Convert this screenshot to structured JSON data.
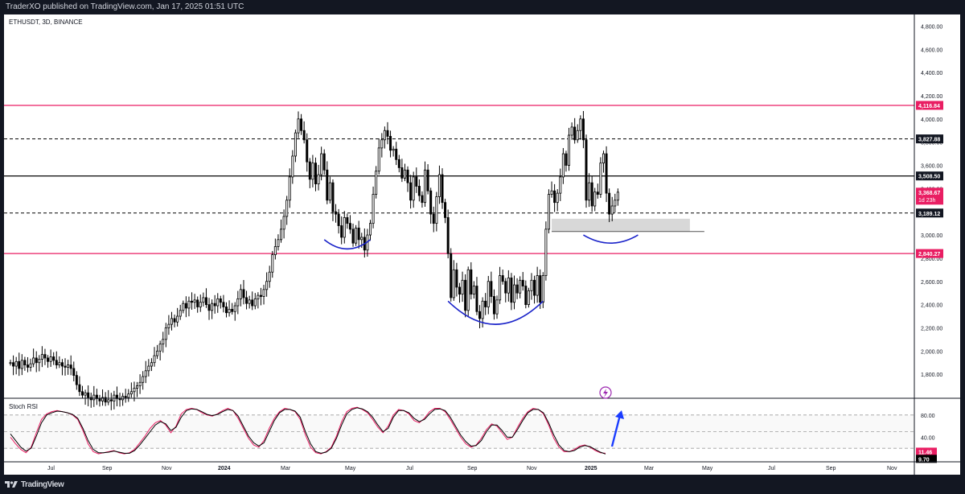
{
  "header": {
    "publish_text": "TraderXO published on TradingView.com, Jan 17, 2025 01:51 UTC"
  },
  "footer": {
    "brand": "TradingView",
    "logo_icon": "tradingview-logo-icon"
  },
  "chart_data": [
    {
      "type": "candlestick",
      "symbol_label": "ETHUSDT, 3D, BINANCE",
      "ylim": [
        1600,
        4900
      ],
      "y_ticks": [
        "4,800.00",
        "4,600.00",
        "4,400.00",
        "4,200.00",
        "4,000.00",
        "3,800.00",
        "3,600.00",
        "3,400.00",
        "3,200.00",
        "3,000.00",
        "2,800.00",
        "2,600.00",
        "2,400.00",
        "2,200.00",
        "2,000.00",
        "1,800.00"
      ],
      "x_ticks": [
        "Jul",
        "Sep",
        "Nov",
        "2024",
        "Mar",
        "May",
        "Jul",
        "Sep",
        "Nov",
        "2025",
        "Mar",
        "May",
        "Jul",
        "Sep",
        "Nov"
      ],
      "price_levels": [
        {
          "label": "4,116.84",
          "value": 4116.84,
          "style": "solid",
          "color": "#e91e63"
        },
        {
          "label": "3,827.88",
          "value": 3827.88,
          "style": "dashed",
          "color": "#000000"
        },
        {
          "label": "3,508.50",
          "value": 3508.5,
          "style": "solid",
          "color": "#000000"
        },
        {
          "label": "3,189.12",
          "value": 3189.12,
          "style": "dashed",
          "color": "#000000"
        },
        {
          "label": "2,840.27",
          "value": 2840.27,
          "style": "solid",
          "color": "#e91e63"
        }
      ],
      "last_price": {
        "label": "3,368.67",
        "countdown": "1d 23h",
        "color": "#e91e63"
      },
      "support_zone": {
        "from": 3030,
        "to": 3140
      },
      "closes": [
        1900,
        1870,
        1910,
        1850,
        1920,
        1880,
        1860,
        1890,
        1940,
        1900,
        1930,
        1970,
        1940,
        1910,
        1950,
        1920,
        1880,
        1900,
        1870,
        1860,
        1880,
        1850,
        1790,
        1710,
        1650,
        1620,
        1640,
        1600,
        1580,
        1620,
        1590,
        1570,
        1600,
        1560,
        1580,
        1570,
        1620,
        1590,
        1580,
        1610,
        1600,
        1630,
        1650,
        1680,
        1700,
        1730,
        1780,
        1830,
        1870,
        1900,
        1960,
        2000,
        2060,
        2100,
        2200,
        2230,
        2280,
        2250,
        2300,
        2350,
        2410,
        2370,
        2430,
        2420,
        2440,
        2380,
        2420,
        2460,
        2400,
        2350,
        2410,
        2390,
        2450,
        2420,
        2380,
        2330,
        2360,
        2340,
        2390,
        2450,
        2530,
        2460,
        2410,
        2440,
        2390,
        2450,
        2480,
        2470,
        2530,
        2600,
        2680,
        2830,
        2900,
        2960,
        3050,
        3160,
        3300,
        3500,
        3680,
        3880,
        4000,
        3900,
        3820,
        3630,
        3480,
        3620,
        3440,
        3520,
        3700,
        3560,
        3300,
        3450,
        3200,
        3180,
        3080,
        2980,
        3150,
        3100,
        3050,
        2930,
        3060,
        2960,
        2980,
        2870,
        3000,
        3100,
        3350,
        3550,
        3750,
        3820,
        3900,
        3850,
        3730,
        3740,
        3650,
        3580,
        3490,
        3560,
        3450,
        3300,
        3500,
        3420,
        3340,
        3280,
        3560,
        3380,
        3180,
        3100,
        3330,
        3520,
        3280,
        3150,
        2840,
        2460,
        2700,
        2550,
        2490,
        2610,
        2350,
        2700,
        2490,
        2560,
        2340,
        2280,
        2430,
        2380,
        2600,
        2470,
        2320,
        2440,
        2650,
        2600,
        2500,
        2630,
        2420,
        2570,
        2500,
        2610,
        2560,
        2400,
        2520,
        2610,
        2480,
        2650,
        2420,
        2650,
        3050,
        3350,
        3380,
        3280,
        3360,
        3500,
        3700,
        3600,
        3860,
        3930,
        3820,
        3900,
        4000,
        3820,
        3300,
        3450,
        3250,
        3370,
        3350,
        3620,
        3700,
        3360,
        3180,
        3250,
        3300,
        3369
      ],
      "arc_markers": [
        {
          "name": "arc-1"
        },
        {
          "name": "arc-2"
        },
        {
          "name": "arc-3"
        }
      ],
      "arrow_marker": "up-arrow"
    },
    {
      "type": "line",
      "label": "Stoch RSI",
      "ylim": [
        0,
        100
      ],
      "y_ticks": [
        "80.00",
        "40.00"
      ],
      "guides": [
        80,
        50,
        20
      ],
      "series": [
        {
          "values_label": "11.46",
          "color": "#e91e63",
          "values": [
            40,
            28,
            18,
            12,
            22,
            48,
            72,
            82,
            86,
            88,
            86,
            84,
            80,
            72,
            52,
            28,
            14,
            10,
            12,
            14,
            16,
            12,
            10,
            12,
            18,
            30,
            42,
            56,
            66,
            70,
            62,
            48,
            60,
            82,
            90,
            92,
            90,
            84,
            80,
            78,
            82,
            88,
            92,
            88,
            74,
            56,
            38,
            26,
            22,
            34,
            56,
            74,
            86,
            92,
            90,
            86,
            72,
            44,
            22,
            12,
            10,
            14,
            22,
            42,
            68,
            86,
            92,
            94,
            90,
            84,
            72,
            58,
            48,
            60,
            80,
            90,
            88,
            82,
            70,
            66,
            74,
            86,
            92,
            92,
            86,
            72,
            56,
            40,
            28,
            22,
            26,
            38,
            54,
            64,
            60,
            48,
            36,
            40,
            58,
            74,
            86,
            92,
            90,
            82,
            62,
            38,
            22,
            14,
            14,
            18,
            24,
            26,
            22,
            16,
            12,
            11
          ]
        },
        {
          "values_label": "9.70",
          "color": "#000000",
          "values": [
            46,
            34,
            22,
            15,
            20,
            42,
            66,
            80,
            84,
            87,
            86,
            84,
            81,
            74,
            56,
            34,
            18,
            12,
            12,
            13,
            15,
            13,
            11,
            11,
            16,
            26,
            38,
            50,
            62,
            68,
            64,
            52,
            58,
            76,
            88,
            91,
            90,
            86,
            81,
            79,
            81,
            86,
            90,
            88,
            78,
            60,
            42,
            30,
            24,
            30,
            50,
            70,
            84,
            90,
            90,
            87,
            76,
            50,
            28,
            14,
            11,
            13,
            20,
            38,
            62,
            82,
            90,
            93,
            91,
            86,
            76,
            62,
            50,
            56,
            76,
            88,
            88,
            84,
            74,
            68,
            72,
            82,
            90,
            91,
            88,
            76,
            60,
            44,
            32,
            24,
            25,
            34,
            50,
            62,
            62,
            52,
            40,
            40,
            54,
            70,
            84,
            90,
            90,
            84,
            66,
            44,
            26,
            16,
            14,
            16,
            22,
            25,
            23,
            18,
            13,
            9.7
          ]
        }
      ]
    }
  ]
}
